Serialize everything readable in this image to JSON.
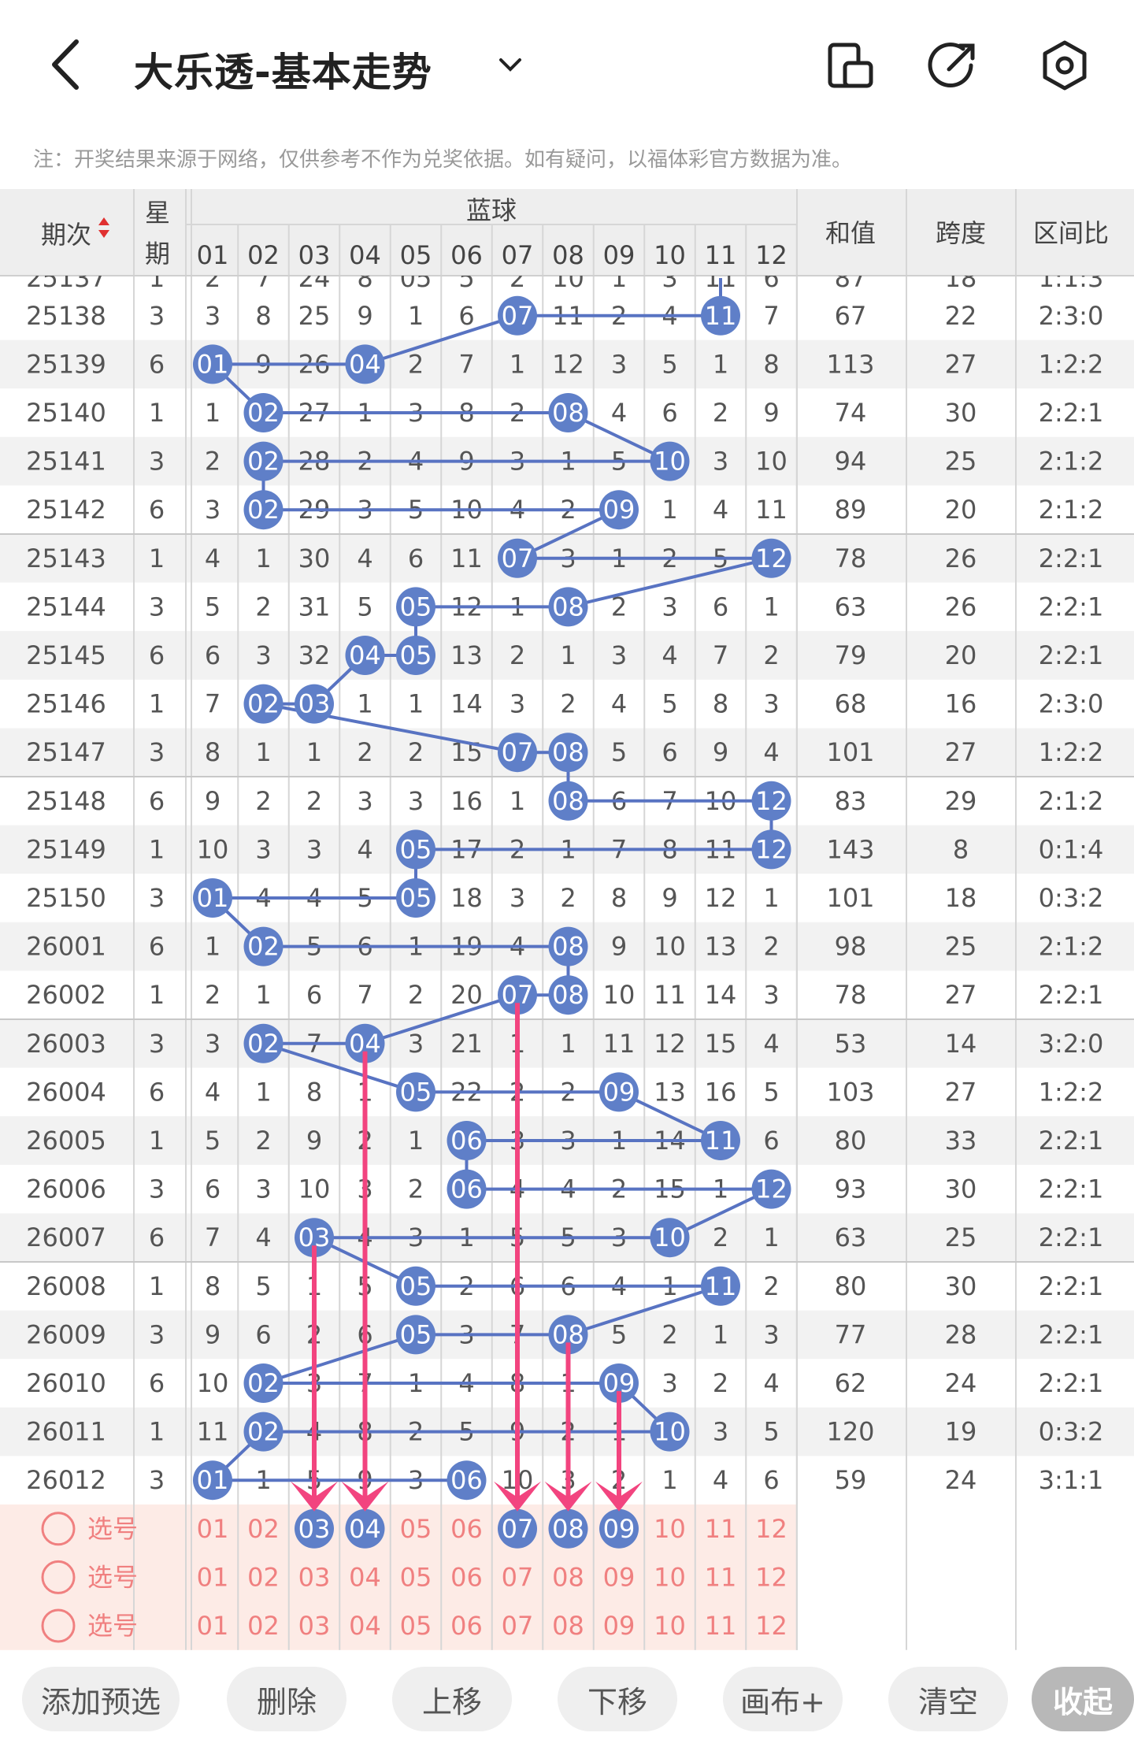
{
  "header": {
    "title": "大乐透-基本走势",
    "note": "注：开奖结果来源于网络，仅供参考不作为兑奖依据。如有疑问，以福体彩官方数据为准。"
  },
  "table": {
    "col_issue": "期次",
    "col_week_1": "星",
    "col_week_2": "期",
    "col_blue": "蓝球",
    "col_sum": "和值",
    "col_span": "跨度",
    "col_ratio": "区间比",
    "blue_numbers": [
      "01",
      "02",
      "03",
      "04",
      "05",
      "06",
      "07",
      "08",
      "09",
      "10",
      "11",
      "12"
    ],
    "rows": [
      {
        "issue": "25138",
        "week": "3",
        "cells": [
          "3",
          "8",
          "25",
          "9",
          "1",
          "6",
          "07",
          "11",
          "2",
          "4",
          "11",
          "7"
        ],
        "hits": [
          7,
          11
        ],
        "sum": "67",
        "span": "22",
        "ratio": "2:3:0"
      },
      {
        "issue": "25139",
        "week": "6",
        "cells": [
          "01",
          "9",
          "26",
          "04",
          "2",
          "7",
          "1",
          "12",
          "3",
          "5",
          "1",
          "8"
        ],
        "hits": [
          1,
          4
        ],
        "sum": "113",
        "span": "27",
        "ratio": "1:2:2"
      },
      {
        "issue": "25140",
        "week": "1",
        "cells": [
          "1",
          "02",
          "27",
          "1",
          "3",
          "8",
          "2",
          "08",
          "4",
          "6",
          "2",
          "9"
        ],
        "hits": [
          2,
          8
        ],
        "sum": "74",
        "span": "30",
        "ratio": "2:2:1"
      },
      {
        "issue": "25141",
        "week": "3",
        "cells": [
          "2",
          "02",
          "28",
          "2",
          "4",
          "9",
          "3",
          "1",
          "5",
          "10",
          "3",
          "10"
        ],
        "hits": [
          2,
          10
        ],
        "sum": "94",
        "span": "25",
        "ratio": "2:1:2"
      },
      {
        "issue": "25142",
        "week": "6",
        "cells": [
          "3",
          "02",
          "29",
          "3",
          "5",
          "10",
          "4",
          "2",
          "09",
          "1",
          "4",
          "11"
        ],
        "hits": [
          2,
          9
        ],
        "sum": "89",
        "span": "20",
        "ratio": "2:1:2"
      },
      {
        "issue": "25143",
        "week": "1",
        "cells": [
          "4",
          "1",
          "30",
          "4",
          "6",
          "11",
          "07",
          "3",
          "1",
          "2",
          "5",
          "12"
        ],
        "hits": [
          7,
          12
        ],
        "sum": "78",
        "span": "26",
        "ratio": "2:2:1"
      },
      {
        "issue": "25144",
        "week": "3",
        "cells": [
          "5",
          "2",
          "31",
          "5",
          "05",
          "12",
          "1",
          "08",
          "2",
          "3",
          "6",
          "1"
        ],
        "hits": [
          5,
          8
        ],
        "sum": "63",
        "span": "26",
        "ratio": "2:2:1"
      },
      {
        "issue": "25145",
        "week": "6",
        "cells": [
          "6",
          "3",
          "32",
          "04",
          "05",
          "13",
          "2",
          "1",
          "3",
          "4",
          "7",
          "2"
        ],
        "hits": [
          4,
          5
        ],
        "sum": "79",
        "span": "20",
        "ratio": "2:2:1"
      },
      {
        "issue": "25146",
        "week": "1",
        "cells": [
          "7",
          "02",
          "03",
          "1",
          "1",
          "14",
          "3",
          "2",
          "4",
          "5",
          "8",
          "3"
        ],
        "hits": [
          2,
          3
        ],
        "sum": "68",
        "span": "16",
        "ratio": "2:3:0"
      },
      {
        "issue": "25147",
        "week": "3",
        "cells": [
          "8",
          "1",
          "1",
          "2",
          "2",
          "15",
          "07",
          "08",
          "5",
          "6",
          "9",
          "4"
        ],
        "hits": [
          7,
          8
        ],
        "sum": "101",
        "span": "27",
        "ratio": "1:2:2"
      },
      {
        "issue": "25148",
        "week": "6",
        "cells": [
          "9",
          "2",
          "2",
          "3",
          "3",
          "16",
          "1",
          "08",
          "6",
          "7",
          "10",
          "12"
        ],
        "hits": [
          8,
          12
        ],
        "sum": "83",
        "span": "29",
        "ratio": "2:1:2"
      },
      {
        "issue": "25149",
        "week": "1",
        "cells": [
          "10",
          "3",
          "3",
          "4",
          "05",
          "17",
          "2",
          "1",
          "7",
          "8",
          "11",
          "12"
        ],
        "hits": [
          5,
          12
        ],
        "sum": "143",
        "span": "8",
        "ratio": "0:1:4"
      },
      {
        "issue": "25150",
        "week": "3",
        "cells": [
          "01",
          "4",
          "4",
          "5",
          "05",
          "18",
          "3",
          "2",
          "8",
          "9",
          "12",
          "1"
        ],
        "hits": [
          1,
          5
        ],
        "sum": "101",
        "span": "18",
        "ratio": "0:3:2"
      },
      {
        "issue": "26001",
        "week": "6",
        "cells": [
          "1",
          "02",
          "5",
          "6",
          "1",
          "19",
          "4",
          "08",
          "9",
          "10",
          "13",
          "2"
        ],
        "hits": [
          2,
          8
        ],
        "sum": "98",
        "span": "25",
        "ratio": "2:1:2"
      },
      {
        "issue": "26002",
        "week": "1",
        "cells": [
          "2",
          "1",
          "6",
          "7",
          "2",
          "20",
          "07",
          "08",
          "10",
          "11",
          "14",
          "3"
        ],
        "hits": [
          7,
          8
        ],
        "sum": "78",
        "span": "27",
        "ratio": "2:2:1"
      },
      {
        "issue": "26003",
        "week": "3",
        "cells": [
          "3",
          "02",
          "7",
          "04",
          "3",
          "21",
          "1",
          "1",
          "11",
          "12",
          "15",
          "4"
        ],
        "hits": [
          2,
          4
        ],
        "sum": "53",
        "span": "14",
        "ratio": "3:2:0"
      },
      {
        "issue": "26004",
        "week": "6",
        "cells": [
          "4",
          "1",
          "8",
          "1",
          "05",
          "22",
          "2",
          "2",
          "09",
          "13",
          "16",
          "5"
        ],
        "hits": [
          5,
          9
        ],
        "sum": "103",
        "span": "27",
        "ratio": "1:2:2"
      },
      {
        "issue": "26005",
        "week": "1",
        "cells": [
          "5",
          "2",
          "9",
          "2",
          "1",
          "06",
          "3",
          "3",
          "1",
          "14",
          "11",
          "6"
        ],
        "hits": [
          6,
          11
        ],
        "sum": "80",
        "span": "33",
        "ratio": "2:2:1"
      },
      {
        "issue": "26006",
        "week": "3",
        "cells": [
          "6",
          "3",
          "10",
          "3",
          "2",
          "06",
          "4",
          "4",
          "2",
          "15",
          "1",
          "12"
        ],
        "hits": [
          6,
          12
        ],
        "sum": "93",
        "span": "30",
        "ratio": "2:2:1"
      },
      {
        "issue": "26007",
        "week": "6",
        "cells": [
          "7",
          "4",
          "03",
          "4",
          "3",
          "1",
          "5",
          "5",
          "3",
          "10",
          "2",
          "1"
        ],
        "hits": [
          3,
          10
        ],
        "sum": "63",
        "span": "25",
        "ratio": "2:2:1"
      },
      {
        "issue": "26008",
        "week": "1",
        "cells": [
          "8",
          "5",
          "1",
          "5",
          "05",
          "2",
          "6",
          "6",
          "4",
          "1",
          "11",
          "2"
        ],
        "hits": [
          5,
          11
        ],
        "sum": "80",
        "span": "30",
        "ratio": "2:2:1"
      },
      {
        "issue": "26009",
        "week": "3",
        "cells": [
          "9",
          "6",
          "2",
          "6",
          "05",
          "3",
          "7",
          "08",
          "5",
          "2",
          "1",
          "3"
        ],
        "hits": [
          5,
          8
        ],
        "sum": "77",
        "span": "28",
        "ratio": "2:2:1"
      },
      {
        "issue": "26010",
        "week": "6",
        "cells": [
          "10",
          "02",
          "3",
          "7",
          "1",
          "4",
          "8",
          "1",
          "09",
          "3",
          "2",
          "4"
        ],
        "hits": [
          2,
          9
        ],
        "sum": "62",
        "span": "24",
        "ratio": "2:2:1"
      },
      {
        "issue": "26011",
        "week": "1",
        "cells": [
          "11",
          "02",
          "4",
          "8",
          "2",
          "5",
          "9",
          "2",
          "1",
          "10",
          "3",
          "5"
        ],
        "hits": [
          2,
          10
        ],
        "sum": "120",
        "span": "19",
        "ratio": "0:3:2"
      },
      {
        "issue": "26012",
        "week": "3",
        "cells": [
          "01",
          "1",
          "5",
          "9",
          "3",
          "06",
          "10",
          "3",
          "2",
          "1",
          "4",
          "6"
        ],
        "hits": [
          1,
          6
        ],
        "sum": "59",
        "span": "24",
        "ratio": "3:1:1"
      }
    ],
    "partial_top_row": {
      "issue": "25137",
      "week": "1",
      "cells": [
        "2",
        "7",
        "24",
        "8",
        "05",
        "5",
        "2",
        "10",
        "1",
        "3",
        "11",
        "6"
      ],
      "sum": "87",
      "span": "18",
      "ratio": "1:1:3"
    },
    "selected_blue": [
      "03",
      "04",
      "07",
      "08",
      "09"
    ],
    "select_label": "选号",
    "select_rows": 3
  },
  "toolbar": {
    "buttons": [
      "添加预选",
      "删除",
      "上移",
      "下移",
      "画布+",
      "清空",
      "收起"
    ]
  },
  "colors": {
    "ball_blue": "#5f7fc8",
    "line_blue": "#5873c2",
    "arrow_pink": "#f2447f",
    "select_bg": "#fdebe6",
    "select_text": "#f08080",
    "row_alt": "#f2f2f2"
  }
}
